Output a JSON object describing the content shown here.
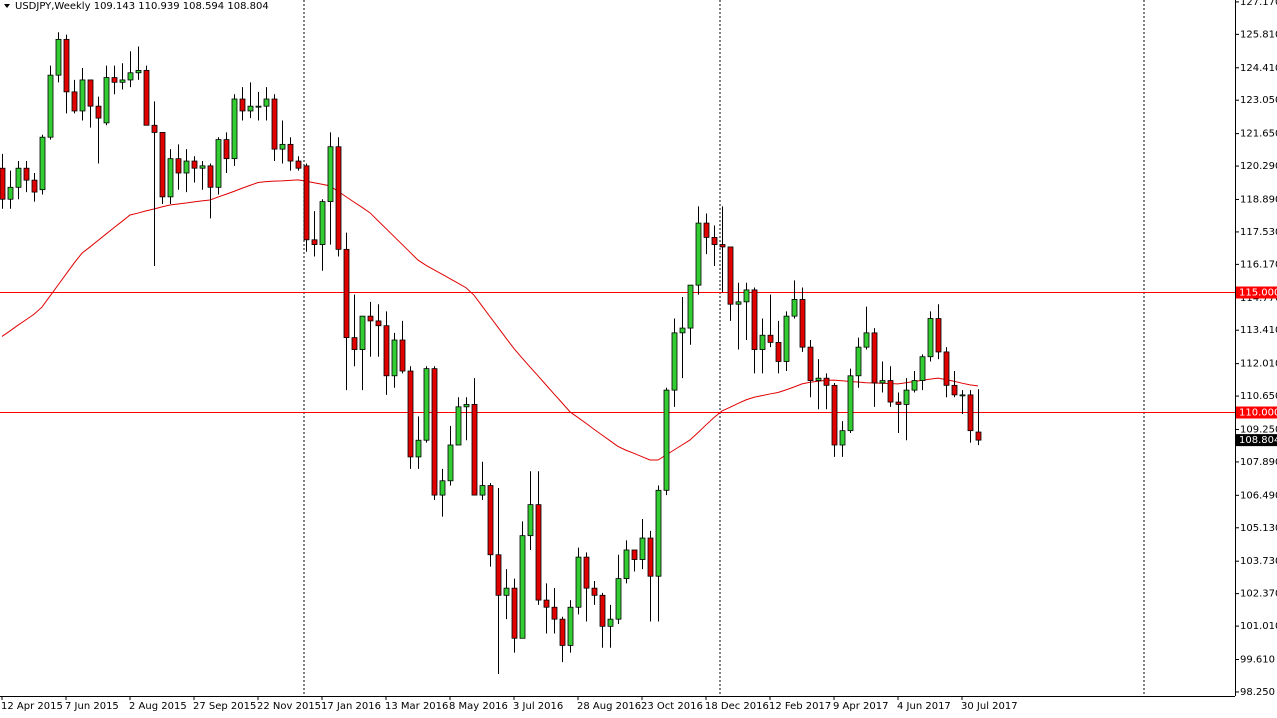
{
  "chart_data": {
    "type": "candlestick",
    "title": "USDJPY,Weekly",
    "categories": [
      "12 Apr 2015",
      null,
      null,
      null,
      null,
      null,
      null,
      null,
      "7 Jun 2015",
      null,
      null,
      null,
      null,
      null,
      null,
      null,
      "2 Aug 2015",
      null,
      null,
      null,
      null,
      null,
      null,
      null,
      "27 Sep 2015",
      null,
      null,
      null,
      null,
      null,
      null,
      null,
      "22 Nov 2015",
      null,
      null,
      null,
      null,
      null,
      null,
      null,
      "17 Jan 2016",
      null,
      null,
      null,
      null,
      null,
      null,
      null,
      "13 Mar 2016",
      null,
      null,
      null,
      null,
      null,
      null,
      null,
      "8 May 2016",
      null,
      null,
      null,
      null,
      null,
      null,
      null,
      "3 Jul 2016",
      null,
      null,
      null,
      null,
      null,
      null,
      null,
      "28 Aug 2016",
      null,
      null,
      null,
      null,
      null,
      null,
      null,
      "23 Oct 2016",
      null,
      null,
      null,
      null,
      null,
      null,
      null,
      "18 Dec 2016",
      null,
      null,
      null,
      null,
      null,
      null,
      null,
      "12 Feb 2017",
      null,
      null,
      null,
      null,
      null,
      null,
      null,
      "9 Apr 2017",
      null,
      null,
      null,
      null,
      null,
      null,
      null,
      "4 Jun 2017",
      null,
      null,
      null,
      null,
      null,
      null,
      null,
      "30 Jul 2017",
      null,
      null
    ],
    "open": [
      120.2,
      118.9,
      119.4,
      120.2,
      119.7,
      119.3,
      121.5,
      124.1,
      125.6,
      123.4,
      122.6,
      123.9,
      122.8,
      122.1,
      124.0,
      123.8,
      123.9,
      124.2,
      124.3,
      122.0,
      121.7,
      119.0,
      120.6,
      120.0,
      120.5,
      120.2,
      120.3,
      119.4,
      121.4,
      120.6,
      123.1,
      122.6,
      122.8,
      122.8,
      123.1,
      121.0,
      121.2,
      120.5,
      120.3,
      117.2,
      117.0,
      118.8,
      121.1,
      116.8,
      113.1,
      112.6,
      114.0,
      113.8,
      113.6,
      111.5,
      113.0,
      111.7,
      108.1,
      108.8,
      111.8,
      106.5,
      107.1,
      108.6,
      110.2,
      110.3,
      106.5,
      106.9,
      104.0,
      102.3,
      102.6,
      100.5,
      104.8,
      106.1,
      102.1,
      101.8,
      101.3,
      100.2,
      101.8,
      103.9,
      102.6,
      102.3,
      101.0,
      101.3,
      103.0,
      104.2,
      103.8,
      104.7,
      103.1,
      106.7,
      110.9,
      113.3,
      113.5,
      115.3,
      117.9,
      117.3,
      117.0,
      116.9,
      114.5,
      114.6,
      115.1,
      112.6,
      113.2,
      112.9,
      112.1,
      114.0,
      114.7,
      112.7,
      111.3,
      111.4,
      111.1,
      108.6,
      109.2,
      111.5,
      112.7,
      113.3,
      111.2,
      111.3,
      110.4,
      110.3,
      110.9,
      111.3,
      112.3,
      113.9,
      112.5,
      111.1,
      110.7,
      110.7,
      109.143
    ],
    "high": [
      120.8,
      120.1,
      120.5,
      120.5,
      120.0,
      121.6,
      124.5,
      125.9,
      125.8,
      123.9,
      124.4,
      123.9,
      123.2,
      124.5,
      124.5,
      124.6,
      125.1,
      125.3,
      124.5,
      123.0,
      121.7,
      121.0,
      121.2,
      121.0,
      120.7,
      120.5,
      120.4,
      121.5,
      121.7,
      123.3,
      123.6,
      123.8,
      123.4,
      123.6,
      123.3,
      122.2,
      121.5,
      120.7,
      120.4,
      118.4,
      118.9,
      121.7,
      121.5,
      117.5,
      114.9,
      114.0,
      114.6,
      114.5,
      114.2,
      113.3,
      113.8,
      111.9,
      109.8,
      111.9,
      111.9,
      107.6,
      109.4,
      110.6,
      110.6,
      111.4,
      107.9,
      107.0,
      106.8,
      103.4,
      103.0,
      105.4,
      107.5,
      107.5,
      102.8,
      102.6,
      101.4,
      102.1,
      104.3,
      104.1,
      102.9,
      102.4,
      101.9,
      104.0,
      104.6,
      104.2,
      105.5,
      105.0,
      106.9,
      111.0,
      113.9,
      114.8,
      115.3,
      118.6,
      118.3,
      117.8,
      118.6,
      116.9,
      115.4,
      115.4,
      115.2,
      113.9,
      114.9,
      113.8,
      114.2,
      115.5,
      115.2,
      113.0,
      112.2,
      111.6,
      111.2,
      109.6,
      111.8,
      113.1,
      114.4,
      113.5,
      112.1,
      111.9,
      110.8,
      111.4,
      111.7,
      112.4,
      114.2,
      114.5,
      112.7,
      111.7,
      110.9,
      110.9,
      110.939
    ],
    "low": [
      118.5,
      118.5,
      118.9,
      119.2,
      118.8,
      119.1,
      121.4,
      123.8,
      122.5,
      122.5,
      122.2,
      121.9,
      120.4,
      122.0,
      123.3,
      123.5,
      123.6,
      123.9,
      122.0,
      116.1,
      118.7,
      118.7,
      119.3,
      119.2,
      119.6,
      119.3,
      118.1,
      119.1,
      120.0,
      120.3,
      122.2,
      122.3,
      122.2,
      122.2,
      120.5,
      120.4,
      120.1,
      120.1,
      116.7,
      116.5,
      115.9,
      117.0,
      116.5,
      110.9,
      111.9,
      110.9,
      112.3,
      112.3,
      110.7,
      111.0,
      111.6,
      107.6,
      107.6,
      108.7,
      106.3,
      105.6,
      106.9,
      108.6,
      108.8,
      106.5,
      106.3,
      103.5,
      99.0,
      101.3,
      99.9,
      100.5,
      104.2,
      101.9,
      100.7,
      100.7,
      99.5,
      99.9,
      101.5,
      101.2,
      101.9,
      100.1,
      100.1,
      101.1,
      102.8,
      103.3,
      103.4,
      101.2,
      101.2,
      106.5,
      110.2,
      111.4,
      112.8,
      114.9,
      116.6,
      116.1,
      115.0,
      113.8,
      112.6,
      113.0,
      111.6,
      111.6,
      112.7,
      111.6,
      111.7,
      113.9,
      112.5,
      110.6,
      110.1,
      110.1,
      108.1,
      108.1,
      109.1,
      111.0,
      112.6,
      110.2,
      110.8,
      110.2,
      109.1,
      108.8,
      110.8,
      110.9,
      112.1,
      112.2,
      110.6,
      110.6,
      109.9,
      108.7,
      108.594
    ],
    "close": [
      118.9,
      119.4,
      120.2,
      119.7,
      119.2,
      121.5,
      124.1,
      125.6,
      123.4,
      122.6,
      123.9,
      122.8,
      122.3,
      124.0,
      123.8,
      123.9,
      124.2,
      124.3,
      122.0,
      121.7,
      119.0,
      120.6,
      120.0,
      120.5,
      120.2,
      120.3,
      119.4,
      121.4,
      120.6,
      123.1,
      122.6,
      122.8,
      122.8,
      123.1,
      121.0,
      121.2,
      120.5,
      120.2,
      117.2,
      117.0,
      118.8,
      121.1,
      116.8,
      113.1,
      112.6,
      114.0,
      113.8,
      113.6,
      111.5,
      113.0,
      111.7,
      108.1,
      108.8,
      111.8,
      106.5,
      107.1,
      108.6,
      110.2,
      110.3,
      106.5,
      106.9,
      104.0,
      102.3,
      102.6,
      100.5,
      104.8,
      106.1,
      102.1,
      101.8,
      101.3,
      100.2,
      101.8,
      103.9,
      102.6,
      102.3,
      101.0,
      101.3,
      103.0,
      104.2,
      103.8,
      104.7,
      103.1,
      106.7,
      110.9,
      113.3,
      113.5,
      115.3,
      117.9,
      117.3,
      117.0,
      116.9,
      114.5,
      114.6,
      115.1,
      112.6,
      113.2,
      112.9,
      112.1,
      114.0,
      114.7,
      112.7,
      111.3,
      111.4,
      111.1,
      108.6,
      109.2,
      111.5,
      112.7,
      113.3,
      111.2,
      111.3,
      110.4,
      110.3,
      110.9,
      111.3,
      112.3,
      113.9,
      112.5,
      111.1,
      110.7,
      110.7,
      109.2,
      108.804
    ],
    "up_color": "#32cd32",
    "down_color": "#e00000",
    "moving_average": {
      "color": "#e00000",
      "values": [
        113.15,
        113.38,
        113.62,
        113.85,
        114.08,
        114.38,
        114.84,
        115.3,
        115.76,
        116.22,
        116.64,
        116.9,
        117.17,
        117.44,
        117.71,
        117.97,
        118.24,
        118.32,
        118.41,
        118.49,
        118.58,
        118.66,
        118.7,
        118.74,
        118.79,
        118.83,
        118.87,
        118.99,
        119.11,
        119.23,
        119.36,
        119.48,
        119.6,
        119.64,
        119.66,
        119.67,
        119.69,
        119.71,
        119.66,
        119.59,
        119.53,
        119.46,
        119.23,
        119.01,
        118.78,
        118.56,
        118.33,
        118.0,
        117.67,
        117.34,
        117.01,
        116.68,
        116.35,
        116.13,
        115.94,
        115.76,
        115.57,
        115.38,
        115.19,
        114.88,
        114.43,
        113.98,
        113.53,
        113.08,
        112.64,
        112.25,
        111.87,
        111.5,
        111.12,
        110.74,
        110.37,
        109.99,
        109.75,
        109.51,
        109.26,
        109.02,
        108.78,
        108.54,
        108.38,
        108.25,
        108.11,
        107.97,
        107.97,
        108.18,
        108.39,
        108.6,
        108.81,
        109.12,
        109.44,
        109.75,
        110.03,
        110.18,
        110.34,
        110.49,
        110.6,
        110.67,
        110.74,
        110.8,
        110.91,
        111.03,
        111.16,
        111.23,
        111.27,
        111.31,
        111.32,
        111.29,
        111.26,
        111.24,
        111.21,
        111.2,
        111.19,
        111.17,
        111.16,
        111.21,
        111.26,
        111.31,
        111.36,
        111.4,
        111.34,
        111.27,
        111.19,
        111.12,
        111.08
      ]
    },
    "hlines": [
      {
        "value": 115,
        "label": "115.000",
        "color": "#ff0000"
      },
      {
        "value": 110,
        "label": "110.000",
        "color": "#ff0000"
      }
    ],
    "ylim": [
      98.08,
      127.25
    ],
    "yticks": [
      {
        "value": 127.17,
        "label": "127.170"
      },
      {
        "value": 125.81,
        "label": "125.810"
      },
      {
        "value": 124.41,
        "label": "124.410"
      },
      {
        "value": 123.05,
        "label": "123.050"
      },
      {
        "value": 121.65,
        "label": "121.650"
      },
      {
        "value": 120.29,
        "label": "120.290"
      },
      {
        "value": 118.89,
        "label": "118.890"
      },
      {
        "value": 117.53,
        "label": "117.530"
      },
      {
        "value": 116.17,
        "label": "116.170"
      },
      {
        "value": 114.77,
        "label": "114.770"
      },
      {
        "value": 113.41,
        "label": "113.410"
      },
      {
        "value": 112.01,
        "label": "112.010"
      },
      {
        "value": 110.65,
        "label": "110.650"
      },
      {
        "value": 109.25,
        "label": "109.250"
      },
      {
        "value": 107.89,
        "label": "107.890"
      },
      {
        "value": 106.49,
        "label": "106.490"
      },
      {
        "value": 105.13,
        "label": "105.130"
      },
      {
        "value": 103.73,
        "label": "103.730"
      },
      {
        "value": 102.37,
        "label": "102.370"
      },
      {
        "value": 101.01,
        "label": "101.010"
      },
      {
        "value": 99.61,
        "label": "99.610"
      },
      {
        "value": 98.25,
        "label": "98.250"
      }
    ]
  }
}
